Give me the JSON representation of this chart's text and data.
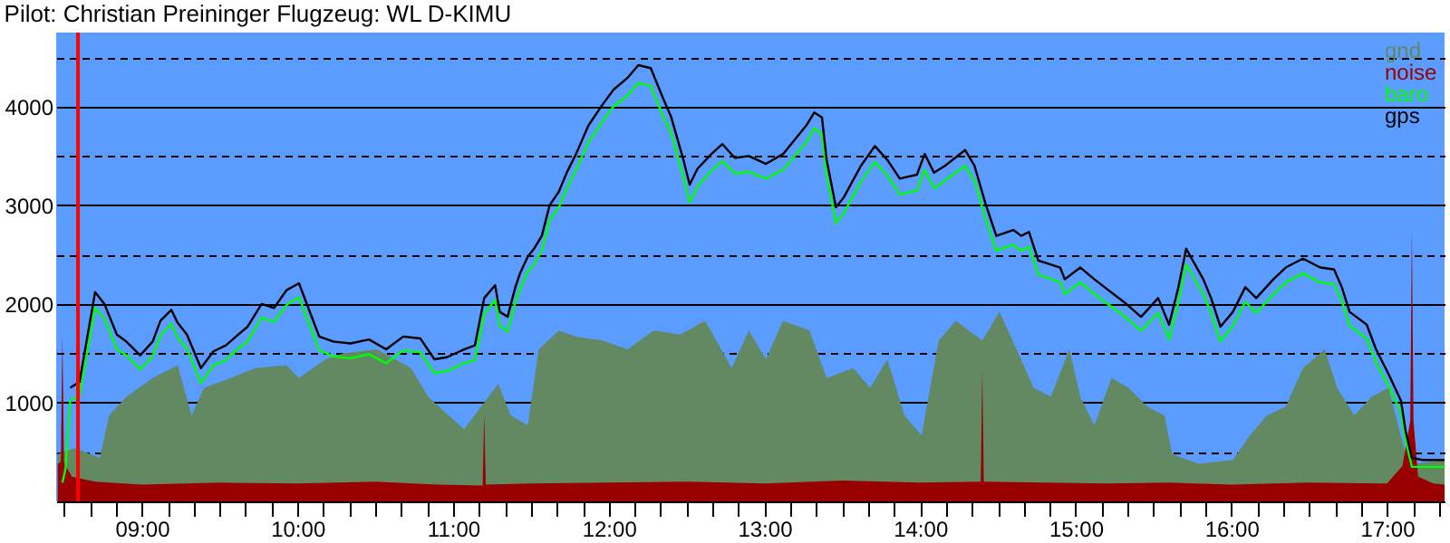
{
  "chart_data": {
    "type": "area",
    "title": "Pilot: Christian Preininger Flugzeug: WL D-KIMU",
    "xlim": [
      8.45,
      17.37
    ],
    "ylim": [
      0,
      4750
    ],
    "xticks": [
      {
        "value": 8.5,
        "label": null
      },
      {
        "value": 8.6667,
        "label": null
      },
      {
        "value": 8.8333,
        "label": null
      },
      {
        "value": 9,
        "label": "09:00"
      },
      {
        "value": 9.1667,
        "label": null
      },
      {
        "value": 9.3333,
        "label": null
      },
      {
        "value": 9.5,
        "label": null
      },
      {
        "value": 9.6667,
        "label": null
      },
      {
        "value": 9.8333,
        "label": null
      },
      {
        "value": 10,
        "label": "10:00"
      },
      {
        "value": 10.1667,
        "label": null
      },
      {
        "value": 10.3333,
        "label": null
      },
      {
        "value": 10.5,
        "label": null
      },
      {
        "value": 10.6667,
        "label": null
      },
      {
        "value": 10.8333,
        "label": null
      },
      {
        "value": 11,
        "label": "11:00"
      },
      {
        "value": 11.1667,
        "label": null
      },
      {
        "value": 11.3333,
        "label": null
      },
      {
        "value": 11.5,
        "label": null
      },
      {
        "value": 11.6667,
        "label": null
      },
      {
        "value": 11.8333,
        "label": null
      },
      {
        "value": 12,
        "label": "12:00"
      },
      {
        "value": 12.1667,
        "label": null
      },
      {
        "value": 12.3333,
        "label": null
      },
      {
        "value": 12.5,
        "label": null
      },
      {
        "value": 12.6667,
        "label": null
      },
      {
        "value": 12.8333,
        "label": null
      },
      {
        "value": 13,
        "label": "13:00"
      },
      {
        "value": 13.1667,
        "label": null
      },
      {
        "value": 13.3333,
        "label": null
      },
      {
        "value": 13.5,
        "label": null
      },
      {
        "value": 13.6667,
        "label": null
      },
      {
        "value": 13.8333,
        "label": null
      },
      {
        "value": 14,
        "label": "14:00"
      },
      {
        "value": 14.1667,
        "label": null
      },
      {
        "value": 14.3333,
        "label": null
      },
      {
        "value": 14.5,
        "label": null
      },
      {
        "value": 14.6667,
        "label": null
      },
      {
        "value": 14.8333,
        "label": null
      },
      {
        "value": 15,
        "label": "15:00"
      },
      {
        "value": 15.1667,
        "label": null
      },
      {
        "value": 15.3333,
        "label": null
      },
      {
        "value": 15.5,
        "label": null
      },
      {
        "value": 15.6667,
        "label": null
      },
      {
        "value": 15.8333,
        "label": null
      },
      {
        "value": 16,
        "label": "16:00"
      },
      {
        "value": 16.1667,
        "label": null
      },
      {
        "value": 16.3333,
        "label": null
      },
      {
        "value": 16.5,
        "label": null
      },
      {
        "value": 16.6667,
        "label": null
      },
      {
        "value": 16.8333,
        "label": null
      },
      {
        "value": 17,
        "label": "17:00"
      },
      {
        "value": 17.1667,
        "label": null
      },
      {
        "value": 17.3333,
        "label": null
      }
    ],
    "yticks": [
      {
        "value": 500,
        "label": null
      },
      1000,
      {
        "value": 1500,
        "label": null
      },
      2000,
      {
        "value": 2500,
        "label": null
      },
      3000,
      {
        "value": 3500,
        "label": null
      },
      4000,
      {
        "value": 4500,
        "label": null
      }
    ],
    "grid": "y",
    "legend": "top right",
    "ref_lines": [
      {
        "axis": "x",
        "value": 8.59,
        "color": "#ff0000"
      }
    ],
    "series": [
      {
        "name": "gnd",
        "color": "#638963",
        "x": [
          8.46,
          8.57,
          8.73,
          8.79,
          8.9,
          9.07,
          9.23,
          9.32,
          9.4,
          9.57,
          9.73,
          9.93,
          10.01,
          10.18,
          10.29,
          10.51,
          10.73,
          10.84,
          11.07,
          11.18,
          11.29,
          11.37,
          11.48,
          11.55,
          11.68,
          11.79,
          11.96,
          12.12,
          12.29,
          12.46,
          12.62,
          12.79,
          12.9,
          13.01,
          13.12,
          13.29,
          13.4,
          13.57,
          13.68,
          13.79,
          13.9,
          14.01,
          14.12,
          14.23,
          14.4,
          14.51,
          14.62,
          14.73,
          14.84,
          14.96,
          15.03,
          15.12,
          15.23,
          15.34,
          15.46,
          15.57,
          15.62,
          15.79,
          16.01,
          16.12,
          16.23,
          16.35,
          16.46,
          16.6,
          16.68,
          16.79,
          16.9,
          17.01,
          17.12,
          17.18,
          17.37
        ],
        "values": [
          480,
          540,
          440,
          870,
          1060,
          1250,
          1380,
          870,
          1150,
          1250,
          1350,
          1380,
          1250,
          1440,
          1500,
          1540,
          1350,
          1060,
          730,
          960,
          1190,
          870,
          770,
          1540,
          1730,
          1670,
          1630,
          1540,
          1730,
          1690,
          1830,
          1350,
          1730,
          1440,
          1830,
          1730,
          1250,
          1350,
          1150,
          1440,
          870,
          670,
          1630,
          1830,
          1630,
          1920,
          1540,
          1150,
          1060,
          1540,
          1060,
          770,
          1250,
          1150,
          960,
          870,
          480,
          380,
          420,
          670,
          870,
          960,
          1350,
          1540,
          1150,
          870,
          1060,
          1150,
          480,
          380,
          420
        ]
      },
      {
        "name": "noise",
        "color": "#990000",
        "x": [
          8.46,
          8.48,
          8.49,
          8.5,
          8.55,
          8.7,
          9.0,
          9.5,
          10.0,
          10.5,
          10.9,
          11.19,
          11.2,
          11.21,
          11.5,
          12.0,
          12.5,
          13.0,
          13.5,
          14.0,
          14.39,
          14.4,
          14.41,
          14.8,
          15.2,
          15.6,
          16.0,
          16.5,
          17.0,
          17.1,
          17.15,
          17.16,
          17.17,
          17.2,
          17.3,
          17.37
        ],
        "values": [
          380,
          400,
          1690,
          400,
          250,
          200,
          170,
          190,
          180,
          200,
          170,
          160,
          880,
          170,
          180,
          190,
          200,
          180,
          210,
          190,
          200,
          1330,
          200,
          190,
          180,
          190,
          170,
          190,
          180,
          360,
          820,
          2750,
          820,
          250,
          180,
          170
        ]
      },
      {
        "name": "baro",
        "type": "line",
        "color": "#00ff00",
        "x": [
          8.49,
          8.51,
          8.54,
          8.6,
          8.7,
          8.76,
          8.84,
          8.9,
          8.99,
          9.07,
          9.12,
          9.19,
          9.23,
          9.29,
          9.38,
          9.46,
          9.54,
          9.62,
          9.68,
          9.77,
          9.85,
          9.93,
          10.01,
          10.07,
          10.14,
          10.23,
          10.34,
          10.46,
          10.57,
          10.68,
          10.79,
          10.88,
          10.96,
          11.07,
          11.14,
          11.2,
          11.27,
          11.3,
          11.35,
          11.4,
          11.43,
          11.48,
          11.52,
          11.57,
          11.62,
          11.68,
          11.73,
          11.79,
          11.87,
          11.96,
          12.03,
          12.12,
          12.19,
          12.27,
          12.35,
          12.4,
          12.48,
          12.52,
          12.57,
          12.66,
          12.73,
          12.81,
          12.9,
          13.01,
          13.12,
          13.27,
          13.32,
          13.37,
          13.4,
          13.46,
          13.51,
          13.62,
          13.71,
          13.79,
          13.87,
          13.98,
          14.03,
          14.09,
          14.16,
          14.29,
          14.35,
          14.42,
          14.49,
          14.6,
          14.65,
          14.7,
          14.76,
          14.9,
          14.93,
          15.03,
          15.12,
          15.31,
          15.42,
          15.53,
          15.6,
          15.66,
          15.71,
          15.82,
          15.87,
          15.93,
          16.01,
          16.09,
          16.16,
          16.27,
          16.35,
          16.46,
          16.57,
          16.66,
          16.71,
          16.76,
          16.87,
          16.93,
          17.01,
          17.09,
          17.12,
          17.16,
          17.23,
          17.37
        ],
        "values": [
          190,
          330,
          1020,
          1080,
          1960,
          1850,
          1540,
          1480,
          1340,
          1470,
          1680,
          1800,
          1660,
          1550,
          1200,
          1380,
          1430,
          1550,
          1620,
          1860,
          1820,
          1990,
          2070,
          1820,
          1530,
          1470,
          1450,
          1490,
          1400,
          1530,
          1510,
          1300,
          1320,
          1400,
          1430,
          1900,
          2040,
          1780,
          1720,
          2020,
          2150,
          2330,
          2400,
          2540,
          2850,
          2980,
          3170,
          3360,
          3640,
          3850,
          4000,
          4110,
          4240,
          4210,
          3900,
          3740,
          3280,
          3030,
          3190,
          3350,
          3450,
          3320,
          3340,
          3270,
          3360,
          3640,
          3780,
          3720,
          3300,
          2820,
          2920,
          3240,
          3440,
          3300,
          3110,
          3150,
          3360,
          3170,
          3250,
          3400,
          3250,
          2870,
          2540,
          2600,
          2540,
          2580,
          2300,
          2220,
          2100,
          2220,
          2100,
          1880,
          1730,
          1910,
          1640,
          2020,
          2400,
          2100,
          1910,
          1620,
          1780,
          2020,
          1910,
          2100,
          2220,
          2310,
          2220,
          2200,
          2030,
          1780,
          1650,
          1410,
          1170,
          900,
          620,
          350,
          350,
          350
        ]
      },
      {
        "name": "gps",
        "type": "line",
        "color": "#000000",
        "x": [
          8.54,
          8.6,
          8.7,
          8.76,
          8.84,
          8.9,
          8.99,
          9.07,
          9.12,
          9.19,
          9.23,
          9.29,
          9.38,
          9.46,
          9.54,
          9.62,
          9.68,
          9.77,
          9.85,
          9.93,
          10.01,
          10.07,
          10.14,
          10.23,
          10.34,
          10.46,
          10.57,
          10.68,
          10.79,
          10.88,
          10.96,
          11.07,
          11.14,
          11.2,
          11.27,
          11.3,
          11.35,
          11.4,
          11.43,
          11.48,
          11.52,
          11.57,
          11.62,
          11.68,
          11.73,
          11.79,
          11.87,
          11.96,
          12.03,
          12.12,
          12.19,
          12.27,
          12.35,
          12.4,
          12.48,
          12.52,
          12.57,
          12.66,
          12.73,
          12.81,
          12.9,
          13.01,
          13.12,
          13.27,
          13.32,
          13.37,
          13.4,
          13.46,
          13.51,
          13.62,
          13.71,
          13.79,
          13.87,
          13.98,
          14.03,
          14.09,
          14.16,
          14.29,
          14.35,
          14.42,
          14.49,
          14.6,
          14.65,
          14.7,
          14.76,
          14.9,
          14.93,
          15.03,
          15.12,
          15.31,
          15.42,
          15.53,
          15.6,
          15.66,
          15.71,
          15.82,
          15.87,
          15.93,
          16.01,
          16.09,
          16.16,
          16.27,
          16.35,
          16.46,
          16.57,
          16.66,
          16.71,
          16.76,
          16.87,
          16.93,
          17.01,
          17.09,
          17.12,
          17.16,
          17.23,
          17.37
        ],
        "values": [
          1150,
          1210,
          2120,
          2000,
          1690,
          1620,
          1480,
          1620,
          1830,
          1940,
          1810,
          1690,
          1350,
          1520,
          1580,
          1690,
          1770,
          2000,
          1960,
          2140,
          2210,
          1960,
          1670,
          1620,
          1600,
          1640,
          1540,
          1670,
          1650,
          1440,
          1460,
          1540,
          1580,
          2060,
          2190,
          1920,
          1870,
          2170,
          2310,
          2480,
          2560,
          2690,
          3000,
          3140,
          3330,
          3520,
          3810,
          4020,
          4170,
          4290,
          4420,
          4390,
          4080,
          3900,
          3460,
          3210,
          3370,
          3520,
          3620,
          3480,
          3500,
          3420,
          3520,
          3810,
          3940,
          3890,
          3460,
          2980,
          3080,
          3400,
          3600,
          3460,
          3270,
          3310,
          3520,
          3330,
          3400,
          3560,
          3400,
          3020,
          2690,
          2750,
          2690,
          2730,
          2440,
          2370,
          2250,
          2370,
          2250,
          2020,
          1870,
          2060,
          1790,
          2170,
          2560,
          2250,
          2060,
          1770,
          1920,
          2170,
          2060,
          2250,
          2370,
          2460,
          2370,
          2350,
          2170,
          1920,
          1790,
          1540,
          1290,
          1020,
          710,
          440,
          420,
          420
        ]
      }
    ]
  }
}
